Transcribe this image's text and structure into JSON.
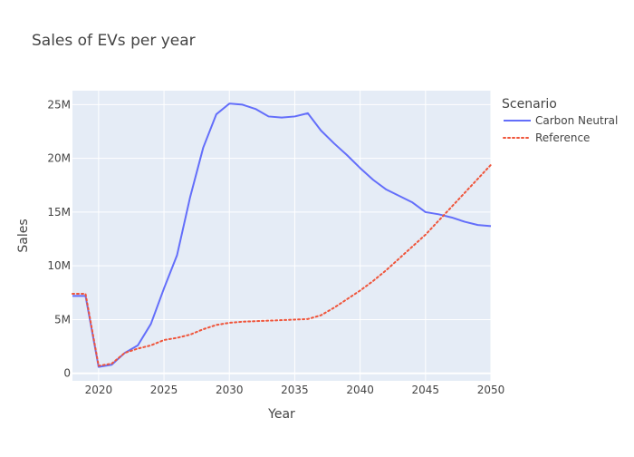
{
  "chart_data": {
    "type": "line",
    "title": "Sales of EVs per year",
    "xlabel": "Year",
    "ylabel": "Sales",
    "xlim": [
      2018,
      2050
    ],
    "ylim": [
      -0.7,
      26.3
    ],
    "y_unit": "M",
    "x_ticks": [
      2020,
      2025,
      2030,
      2035,
      2040,
      2045,
      2050
    ],
    "y_ticks": [
      {
        "value": 0,
        "label": "0"
      },
      {
        "value": 5,
        "label": "5M"
      },
      {
        "value": 10,
        "label": "10M"
      },
      {
        "value": 15,
        "label": "15M"
      },
      {
        "value": 20,
        "label": "20M"
      },
      {
        "value": 25,
        "label": "25M"
      }
    ],
    "grid": true,
    "plot_bg": "#e5ecf6",
    "legend": {
      "title": "Scenario",
      "placement": "top-right"
    },
    "series": [
      {
        "name": "Carbon Neutral",
        "color": "#636efa",
        "dash": "solid",
        "points": [
          [
            2018,
            7.2
          ],
          [
            2019,
            7.2
          ],
          [
            2020,
            0.6
          ],
          [
            2021,
            0.8
          ],
          [
            2022,
            1.9
          ],
          [
            2023,
            2.6
          ],
          [
            2024,
            4.6
          ],
          [
            2025,
            7.9
          ],
          [
            2026,
            11.0
          ],
          [
            2027,
            16.4
          ],
          [
            2028,
            21.0
          ],
          [
            2029,
            24.1
          ],
          [
            2030,
            25.1
          ],
          [
            2031,
            25.0
          ],
          [
            2032,
            24.6
          ],
          [
            2033,
            23.9
          ],
          [
            2034,
            23.8
          ],
          [
            2035,
            23.9
          ],
          [
            2036,
            24.2
          ],
          [
            2037,
            22.6
          ],
          [
            2038,
            21.4
          ],
          [
            2039,
            20.3
          ],
          [
            2040,
            19.1
          ],
          [
            2041,
            18.0
          ],
          [
            2042,
            17.1
          ],
          [
            2043,
            16.5
          ],
          [
            2044,
            15.9
          ],
          [
            2045,
            15.0
          ],
          [
            2046,
            14.8
          ],
          [
            2047,
            14.5
          ],
          [
            2048,
            14.1
          ],
          [
            2049,
            13.8
          ],
          [
            2050,
            13.7
          ]
        ]
      },
      {
        "name": "Reference",
        "color": "#ef553b",
        "dash": "dot",
        "points": [
          [
            2018,
            7.4
          ],
          [
            2019,
            7.4
          ],
          [
            2020,
            0.7
          ],
          [
            2021,
            0.9
          ],
          [
            2022,
            1.9
          ],
          [
            2023,
            2.3
          ],
          [
            2024,
            2.6
          ],
          [
            2025,
            3.1
          ],
          [
            2026,
            3.3
          ],
          [
            2027,
            3.6
          ],
          [
            2028,
            4.1
          ],
          [
            2029,
            4.5
          ],
          [
            2030,
            4.7
          ],
          [
            2031,
            4.8
          ],
          [
            2032,
            4.85
          ],
          [
            2033,
            4.9
          ],
          [
            2034,
            4.95
          ],
          [
            2035,
            5.0
          ],
          [
            2036,
            5.05
          ],
          [
            2037,
            5.4
          ],
          [
            2038,
            6.1
          ],
          [
            2039,
            6.9
          ],
          [
            2040,
            7.7
          ],
          [
            2041,
            8.6
          ],
          [
            2042,
            9.6
          ],
          [
            2043,
            10.7
          ],
          [
            2044,
            11.8
          ],
          [
            2045,
            12.9
          ],
          [
            2046,
            14.2
          ],
          [
            2047,
            15.5
          ],
          [
            2048,
            16.8
          ],
          [
            2049,
            18.1
          ],
          [
            2050,
            19.4
          ]
        ]
      }
    ]
  }
}
